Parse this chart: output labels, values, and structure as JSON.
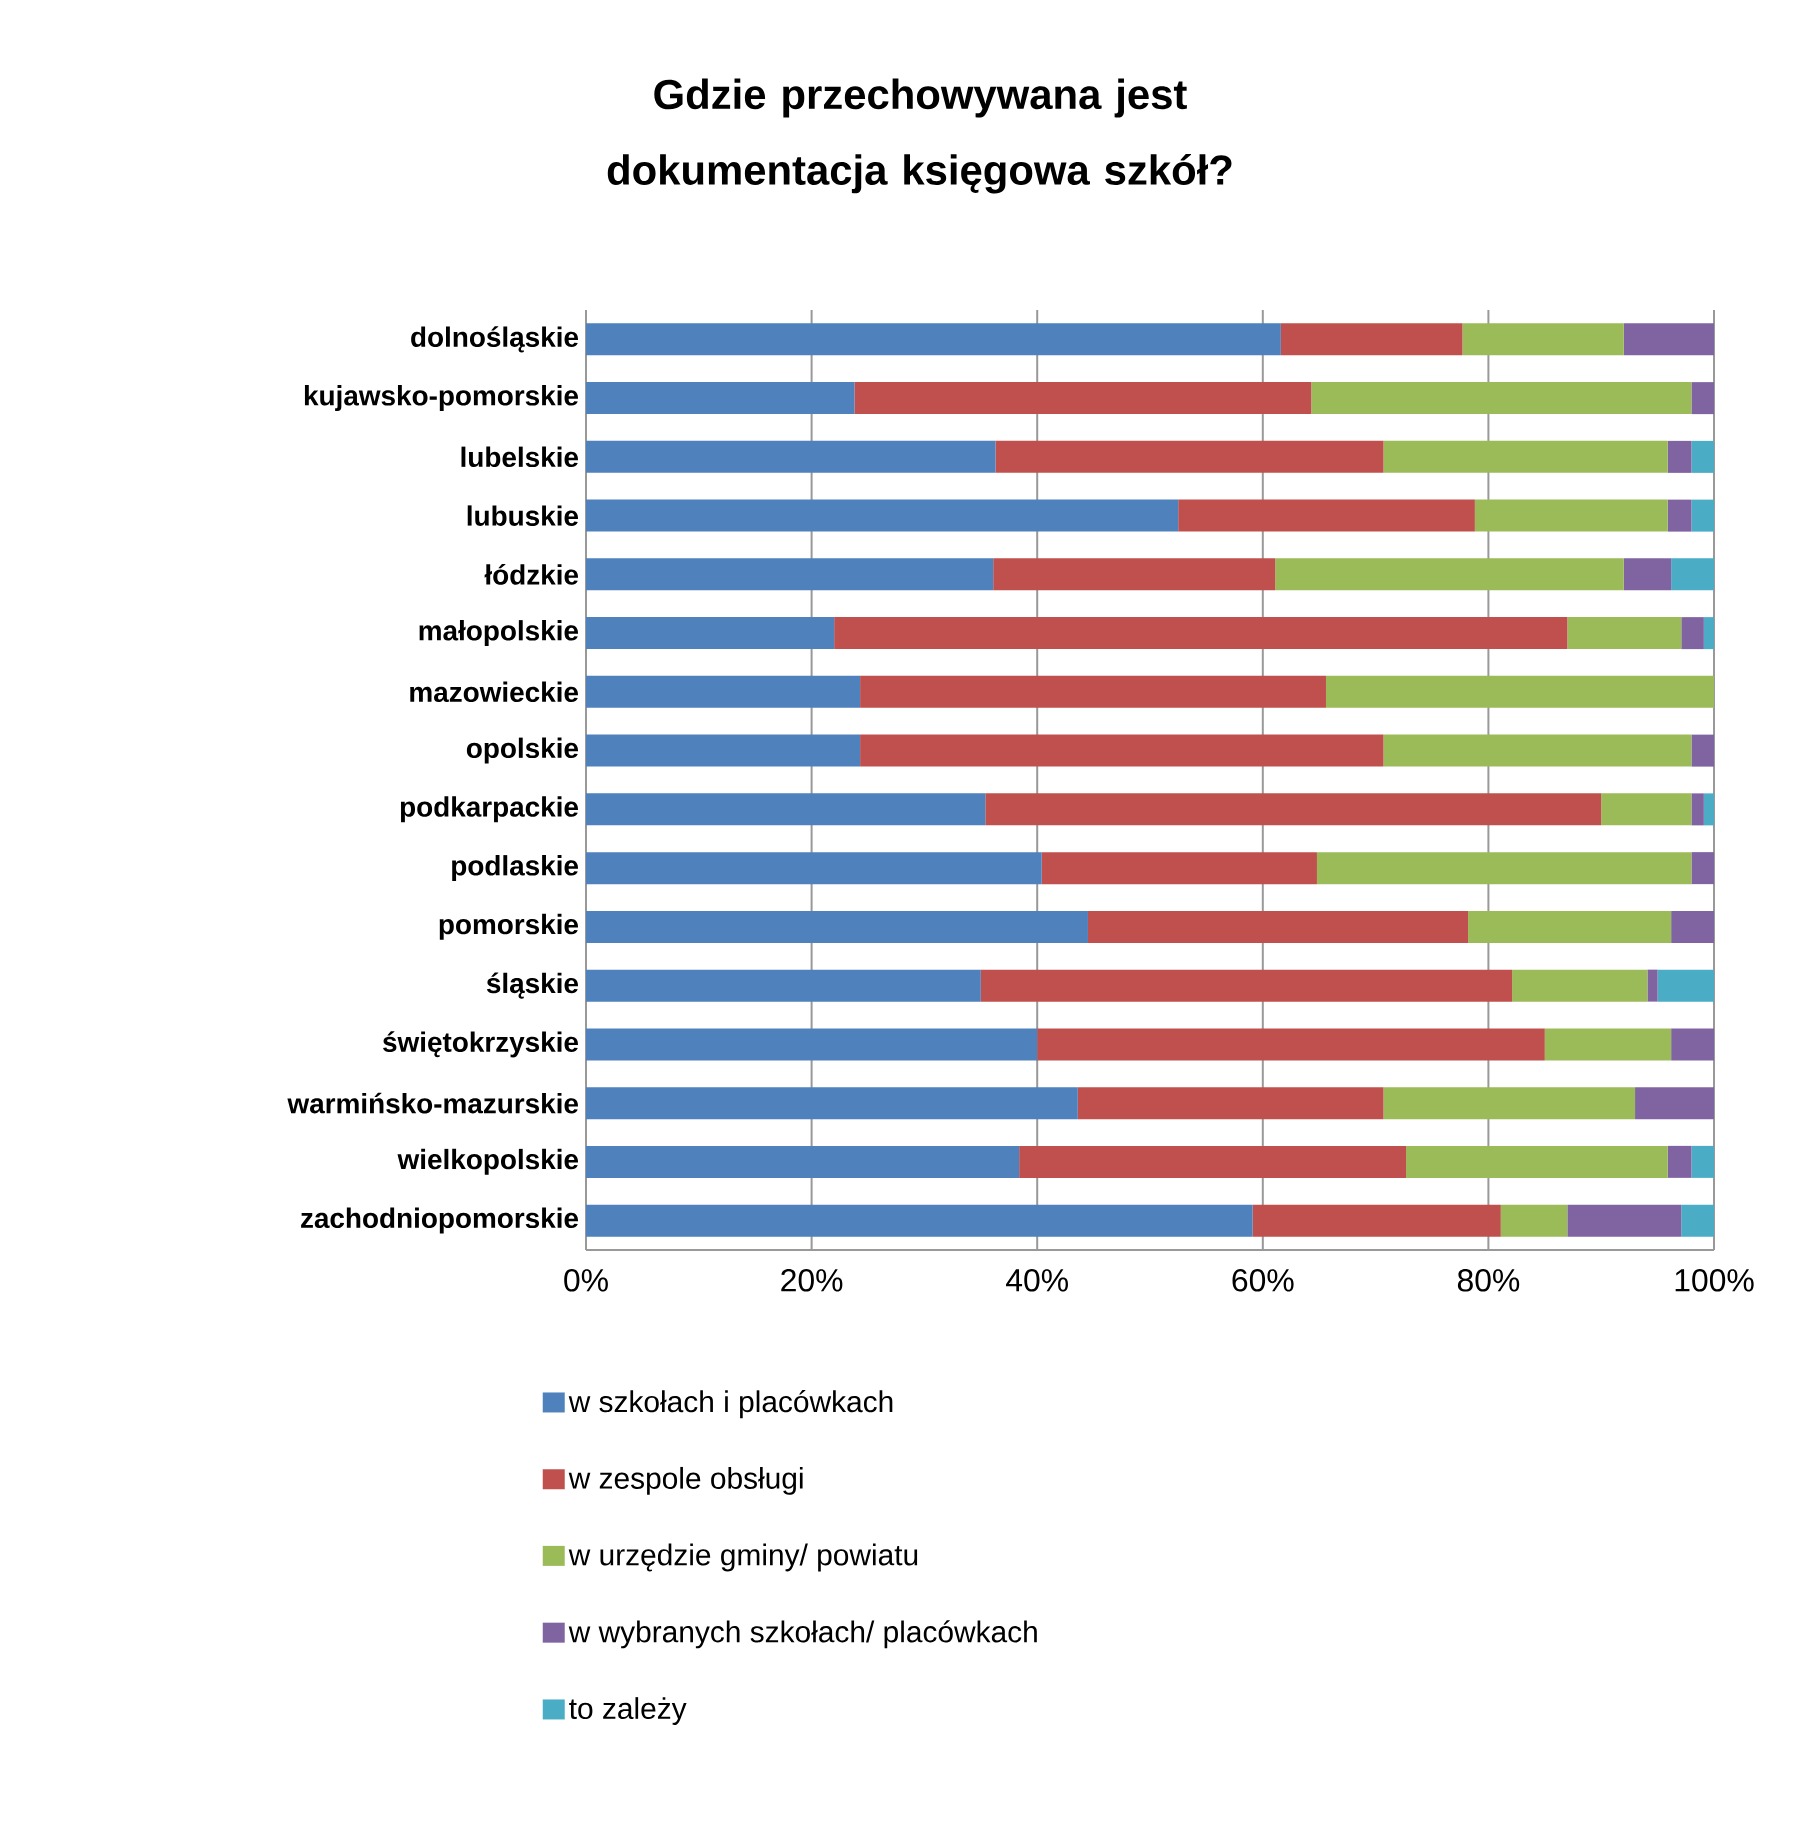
{
  "chart_data": {
    "type": "bar",
    "orientation": "horizontal",
    "stacked": true,
    "title": "Gdzie przechowywana jest dokumentacja księgowa szkół?",
    "categories": [
      "dolnośląskie",
      "kujawsko-pomorskie",
      "lubelskie",
      "lubuskie",
      "łódzkie",
      "małopolskie",
      "mazowieckie",
      "opolskie",
      "podkarpackie",
      "podlaskie",
      "pomorskie",
      "śląskie",
      "świętokrzyskie",
      "warmińsko-mazurskie",
      "wielkopolskie",
      "zachodniopomorskie"
    ],
    "series": [
      {
        "name": "w szkołach i placówkach",
        "color": "#4f81bd",
        "values": [
          61.6,
          23.8,
          36.3,
          52.5,
          36.1,
          22.0,
          24.3,
          24.3,
          35.4,
          40.4,
          44.5,
          35.0,
          40.0,
          43.6,
          38.4,
          59.1
        ]
      },
      {
        "name": "w zespole obsługi",
        "color": "#c0504d",
        "values": [
          16.1,
          40.5,
          34.4,
          26.3,
          25.0,
          65.0,
          41.3,
          46.4,
          54.6,
          24.4,
          33.7,
          47.1,
          45.0,
          27.1,
          34.3,
          22.0
        ]
      },
      {
        "name": "w urzędzie gminy/ powiatu",
        "color": "#9bbb59",
        "values": [
          14.3,
          33.7,
          25.2,
          17.1,
          30.9,
          10.1,
          34.4,
          27.3,
          8.0,
          33.2,
          18.0,
          12.0,
          11.2,
          22.3,
          23.2,
          5.9
        ]
      },
      {
        "name": "w wybranych szkołach/ placówkach",
        "color": "#8064a2",
        "values": [
          8.0,
          2.0,
          2.1,
          2.1,
          4.2,
          2.0,
          0,
          2.0,
          1.1,
          2.0,
          3.8,
          0.9,
          3.8,
          7.0,
          2.1,
          10.1
        ]
      },
      {
        "name": "to zależy",
        "color": "#4bacc6",
        "values": [
          0,
          0,
          2.0,
          2.0,
          3.8,
          0.9,
          0,
          0,
          0.9,
          0,
          0,
          5.0,
          0,
          0,
          2.0,
          2.9
        ]
      }
    ],
    "xlim": [
      0,
      100
    ],
    "xticks": [
      {
        "value": 0,
        "label": "0%"
      },
      {
        "value": 20,
        "label": "20%"
      },
      {
        "value": 40,
        "label": "40%"
      },
      {
        "value": 60,
        "label": "60%"
      },
      {
        "value": 80,
        "label": "80%"
      },
      {
        "value": 100,
        "label": "100%"
      }
    ],
    "grid": "x",
    "legend": "bottom"
  }
}
